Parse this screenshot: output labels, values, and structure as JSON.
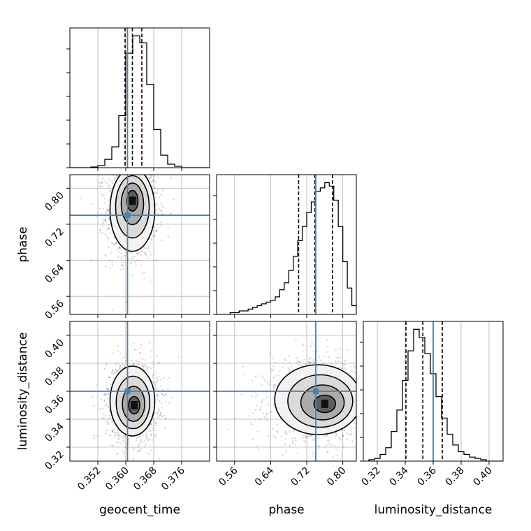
{
  "chart_data": {
    "type": "corner",
    "parameters": [
      "geocent_time",
      "phase",
      "luminosity_distance"
    ],
    "truths": {
      "geocent_time": 0.3605,
      "phase": 0.74,
      "luminosity_distance": 0.36
    },
    "colors": {
      "truth": "#4682b4",
      "hist": "#000000",
      "grid": "#b0b0b0"
    },
    "axes": {
      "geocent_time": {
        "label": "geocent_time",
        "range": [
          0.344,
          0.384
        ],
        "ticks": [
          0.352,
          0.36,
          0.368,
          0.376
        ],
        "tick_labels": [
          "0.352",
          "0.360",
          "0.368",
          "0.376"
        ],
        "quantiles": [
          0.3598,
          0.3619,
          0.3646
        ]
      },
      "phase": {
        "label": "phase",
        "range": [
          0.52,
          0.83
        ],
        "ticks": [
          0.56,
          0.64,
          0.72,
          0.8
        ],
        "tick_labels": [
          "0.56",
          "0.64",
          "0.72",
          "0.80"
        ],
        "quantiles": [
          0.702,
          0.738,
          0.777
        ]
      },
      "luminosity_distance": {
        "label": "luminosity_distance",
        "range": [
          0.31,
          0.41
        ],
        "ticks": [
          0.32,
          0.34,
          0.36,
          0.38,
          0.4
        ],
        "tick_labels": [
          "0.32",
          "0.34",
          "0.36",
          "0.38",
          "0.40"
        ],
        "quantiles": [
          0.3405,
          0.3526,
          0.3665
        ]
      }
    },
    "marginals": {
      "geocent_time": {
        "edges": [
          0.344,
          0.346,
          0.348,
          0.35,
          0.352,
          0.354,
          0.356,
          0.358,
          0.36,
          0.362,
          0.364,
          0.366,
          0.368,
          0.37,
          0.372,
          0.374,
          0.376,
          0.378,
          0.38,
          0.382,
          0.384
        ],
        "counts": [
          0,
          0,
          0,
          1,
          3,
          12,
          30,
          75,
          165,
          190,
          180,
          120,
          55,
          18,
          5,
          2,
          0,
          0,
          0,
          0
        ]
      },
      "phase": {
        "edges": [
          0.52,
          0.53,
          0.54,
          0.55,
          0.56,
          0.57,
          0.58,
          0.59,
          0.6,
          0.61,
          0.62,
          0.63,
          0.64,
          0.65,
          0.66,
          0.67,
          0.68,
          0.69,
          0.7,
          0.71,
          0.72,
          0.73,
          0.74,
          0.75,
          0.76,
          0.77,
          0.78,
          0.79,
          0.8,
          0.81,
          0.82,
          0.83
        ],
        "counts": [
          0,
          0,
          0,
          1,
          1,
          2,
          2,
          3,
          4,
          5,
          6,
          7,
          8,
          10,
          14,
          18,
          25,
          33,
          42,
          50,
          58,
          64,
          70,
          72,
          75,
          73,
          65,
          50,
          30,
          15,
          5
        ]
      },
      "luminosity_distance": {
        "edges": [
          0.31,
          0.314,
          0.318,
          0.322,
          0.326,
          0.33,
          0.334,
          0.338,
          0.342,
          0.346,
          0.35,
          0.354,
          0.358,
          0.362,
          0.366,
          0.37,
          0.374,
          0.378,
          0.382,
          0.386,
          0.39,
          0.394,
          0.398,
          0.402,
          0.406,
          0.41
        ],
        "counts": [
          0,
          1,
          2,
          5,
          10,
          22,
          38,
          60,
          82,
          98,
          92,
          80,
          65,
          48,
          32,
          20,
          12,
          7,
          5,
          3,
          2,
          1,
          0,
          0,
          0
        ]
      }
    },
    "joint": [
      {
        "x": "geocent_time",
        "y": "phase",
        "center": [
          0.3619,
          0.752
        ],
        "sigma": [
          0.0032,
          0.046
        ],
        "peak_offset": [
          0.0,
          0.02
        ]
      },
      {
        "x": "geocent_time",
        "y": "luminosity_distance",
        "center": [
          0.3619,
          0.353
        ],
        "sigma": [
          0.0032,
          0.0125
        ],
        "peak_offset": [
          0.0005,
          -0.003
        ]
      },
      {
        "x": "phase",
        "y": "luminosity_distance",
        "center": [
          0.745,
          0.354
        ],
        "sigma": [
          0.048,
          0.0125
        ],
        "peak_offset": [
          0.015,
          -0.003
        ]
      }
    ]
  }
}
